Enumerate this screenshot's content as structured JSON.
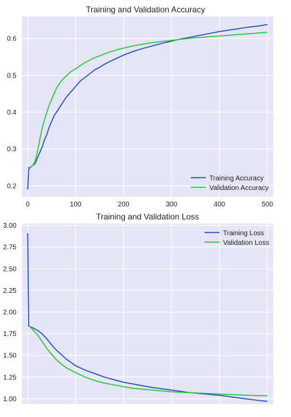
{
  "chart_data": [
    {
      "type": "line",
      "title": "Training and Validation Accuracy",
      "xlabel": "",
      "ylabel": "",
      "xlim": [
        -12,
        512
      ],
      "ylim": [
        0.17,
        0.66
      ],
      "xticks": [
        0,
        100,
        200,
        300,
        400,
        500
      ],
      "yticks": [
        0.2,
        0.3,
        0.4,
        0.5,
        0.6
      ],
      "xtick_labels": [
        "0",
        "100",
        "200",
        "300",
        "400",
        "500"
      ],
      "ytick_labels": [
        "0.2",
        "0.3",
        "0.4",
        "0.5",
        "0.6"
      ],
      "grid": true,
      "legend": "lower-right",
      "series": [
        {
          "name": "Training Accuracy",
          "color": "#1f4fb4",
          "x": [
            0,
            2,
            10,
            15,
            20,
            25,
            30,
            35,
            40,
            45,
            50,
            55,
            60,
            65,
            70,
            80,
            90,
            100,
            110,
            120,
            130,
            140,
            150,
            160,
            170,
            180,
            190,
            200,
            220,
            240,
            260,
            280,
            300,
            320,
            340,
            360,
            380,
            400,
            420,
            440,
            460,
            480,
            500
          ],
          "y": [
            0.19,
            0.245,
            0.255,
            0.26,
            0.275,
            0.29,
            0.305,
            0.325,
            0.34,
            0.36,
            0.375,
            0.39,
            0.4,
            0.41,
            0.42,
            0.44,
            0.455,
            0.47,
            0.485,
            0.495,
            0.505,
            0.515,
            0.522,
            0.53,
            0.537,
            0.543,
            0.549,
            0.555,
            0.565,
            0.573,
            0.58,
            0.587,
            0.593,
            0.599,
            0.604,
            0.609,
            0.614,
            0.619,
            0.623,
            0.627,
            0.631,
            0.634,
            0.638
          ]
        },
        {
          "name": "Validation Accuracy",
          "color": "#22c73a",
          "x": [
            0,
            5,
            10,
            15,
            20,
            25,
            30,
            35,
            40,
            45,
            50,
            55,
            60,
            65,
            70,
            80,
            90,
            100,
            110,
            120,
            130,
            140,
            150,
            160,
            170,
            180,
            190,
            200,
            220,
            240,
            260,
            280,
            300,
            320,
            340,
            360,
            380,
            400,
            420,
            440,
            460,
            480,
            500
          ],
          "y": [
            0.25,
            0.25,
            0.255,
            0.265,
            0.29,
            0.325,
            0.355,
            0.38,
            0.4,
            0.42,
            0.435,
            0.45,
            0.465,
            0.475,
            0.485,
            0.498,
            0.51,
            0.518,
            0.527,
            0.535,
            0.542,
            0.548,
            0.553,
            0.558,
            0.563,
            0.567,
            0.571,
            0.574,
            0.58,
            0.585,
            0.589,
            0.592,
            0.595,
            0.598,
            0.601,
            0.603,
            0.605,
            0.607,
            0.609,
            0.611,
            0.613,
            0.615,
            0.617
          ]
        }
      ]
    },
    {
      "type": "line",
      "title": "Training and Validation Loss",
      "xlabel": "",
      "ylabel": "",
      "xlim": [
        -12,
        512
      ],
      "ylim": [
        0.94,
        3.02
      ],
      "yticks": [
        1.0,
        1.25,
        1.5,
        1.75,
        2.0,
        2.25,
        2.5,
        2.75,
        3.0
      ],
      "ytick_labels": [
        "1.00",
        "1.25",
        "1.50",
        "1.75",
        "2.00",
        "2.25",
        "2.50",
        "2.75",
        "3.00"
      ],
      "xgrid": [
        0,
        100,
        200,
        300,
        400,
        500
      ],
      "grid": true,
      "legend": "top-right",
      "series": [
        {
          "name": "Training Loss",
          "color": "#1f4fb4",
          "x": [
            0,
            2,
            5,
            10,
            20,
            30,
            40,
            50,
            60,
            70,
            80,
            90,
            100,
            120,
            140,
            160,
            180,
            200,
            220,
            240,
            260,
            280,
            300,
            320,
            340,
            360,
            380,
            400,
            420,
            440,
            460,
            480,
            500
          ],
          "y": [
            2.91,
            1.84,
            1.83,
            1.82,
            1.79,
            1.75,
            1.69,
            1.62,
            1.56,
            1.51,
            1.46,
            1.42,
            1.38,
            1.33,
            1.29,
            1.25,
            1.22,
            1.19,
            1.17,
            1.15,
            1.13,
            1.115,
            1.1,
            1.085,
            1.07,
            1.06,
            1.05,
            1.04,
            1.025,
            1.01,
            0.995,
            0.982,
            0.97
          ]
        },
        {
          "name": "Validation Loss",
          "color": "#22c73a",
          "x": [
            0,
            5,
            10,
            20,
            30,
            40,
            50,
            60,
            70,
            80,
            90,
            100,
            120,
            140,
            160,
            180,
            200,
            220,
            240,
            260,
            280,
            300,
            320,
            340,
            360,
            380,
            400,
            420,
            440,
            460,
            480,
            500
          ],
          "y": [
            1.84,
            1.83,
            1.8,
            1.74,
            1.66,
            1.58,
            1.51,
            1.45,
            1.4,
            1.36,
            1.33,
            1.3,
            1.25,
            1.21,
            1.18,
            1.16,
            1.14,
            1.12,
            1.11,
            1.1,
            1.09,
            1.08,
            1.075,
            1.07,
            1.065,
            1.06,
            1.055,
            1.05,
            1.045,
            1.04,
            1.037,
            1.035
          ]
        }
      ]
    }
  ]
}
